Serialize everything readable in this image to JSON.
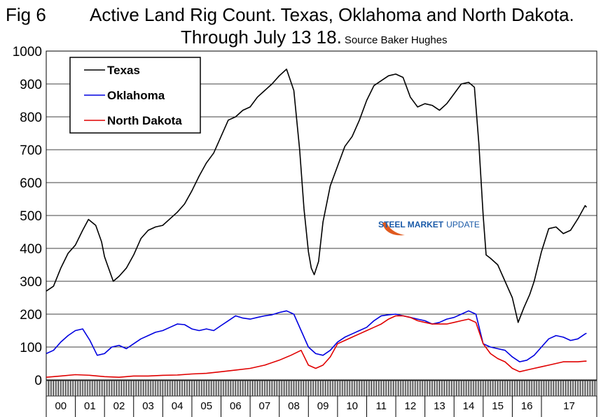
{
  "header": {
    "fig_label": "Fig 6",
    "title_line1": "Active Land Rig Count. Texas, Oklahoma and North Dakota.",
    "title_line2": "Through July 13 18.",
    "source": "Source Baker Hughes"
  },
  "watermark": {
    "text_bold": "STEEL MARKET",
    "text_light": "UPDATE",
    "brand_color": "#1a5aa8",
    "accent_color": "#e05a1e"
  },
  "chart_data": {
    "type": "line",
    "title": "Active Land Rig Count. Texas, Oklahoma and North Dakota. Through July 13 18.",
    "xlabel": "",
    "ylabel": "",
    "ylim": [
      0,
      1000
    ],
    "xlim": [
      2000.0,
      2018.9
    ],
    "y_ticks": [
      "0",
      "100",
      "200",
      "300",
      "400",
      "500",
      "600",
      "700",
      "800",
      "900",
      "1000"
    ],
    "x_categories": [
      "00",
      "01",
      "02",
      "03",
      "04",
      "05",
      "06",
      "07",
      "08",
      "09",
      "10",
      "11",
      "12",
      "13",
      "14",
      "15",
      "16",
      "17"
    ],
    "x_category_starts": [
      2000,
      2001,
      2002,
      2003,
      2004,
      2005,
      2006,
      2007,
      2008,
      2009,
      2010,
      2011,
      2012,
      2013,
      2014,
      2015,
      2016,
      2017
    ],
    "legend": {
      "position": "top-left"
    },
    "series": [
      {
        "name": "Texas",
        "color": "#000000",
        "x": [
          2000.0,
          2000.25,
          2000.5,
          2000.75,
          2001.0,
          2001.25,
          2001.45,
          2001.7,
          2001.9,
          2002.0,
          2002.1,
          2002.3,
          2002.5,
          2002.75,
          2003.0,
          2003.25,
          2003.5,
          2003.75,
          2004.0,
          2004.25,
          2004.5,
          2004.75,
          2005.0,
          2005.25,
          2005.5,
          2005.75,
          2006.0,
          2006.25,
          2006.5,
          2006.75,
          2007.0,
          2007.25,
          2007.5,
          2007.75,
          2008.0,
          2008.25,
          2008.5,
          2008.7,
          2008.85,
          2009.0,
          2009.1,
          2009.2,
          2009.35,
          2009.5,
          2009.75,
          2010.0,
          2010.25,
          2010.5,
          2010.75,
          2011.0,
          2011.25,
          2011.5,
          2011.75,
          2012.0,
          2012.25,
          2012.5,
          2012.75,
          2013.0,
          2013.25,
          2013.5,
          2013.75,
          2014.0,
          2014.25,
          2014.5,
          2014.7,
          2014.85,
          2015.0,
          2015.1,
          2015.25,
          2015.5,
          2015.75,
          2016.0,
          2016.2,
          2016.4,
          2016.6,
          2016.75,
          2017.0,
          2017.25,
          2017.5,
          2017.75,
          2018.0,
          2018.25,
          2018.5,
          2018.55
        ],
        "values": [
          270,
          285,
          340,
          385,
          410,
          455,
          488,
          470,
          420,
          375,
          350,
          300,
          315,
          340,
          380,
          430,
          455,
          465,
          470,
          490,
          510,
          535,
          575,
          620,
          660,
          690,
          740,
          790,
          800,
          820,
          830,
          860,
          880,
          900,
          925,
          945,
          880,
          700,
          520,
          390,
          340,
          320,
          360,
          480,
          590,
          650,
          710,
          740,
          790,
          850,
          895,
          910,
          925,
          930,
          920,
          860,
          830,
          840,
          835,
          820,
          840,
          870,
          900,
          905,
          890,
          720,
          500,
          380,
          370,
          350,
          300,
          250,
          175,
          220,
          260,
          300,
          390,
          460,
          465,
          445,
          455,
          490,
          530,
          525
        ]
      },
      {
        "name": "Oklahoma",
        "color": "#0000e0",
        "x": [
          2000.0,
          2000.25,
          2000.5,
          2000.75,
          2001.0,
          2001.25,
          2001.5,
          2001.75,
          2002.0,
          2002.25,
          2002.5,
          2002.75,
          2003.0,
          2003.25,
          2003.5,
          2003.75,
          2004.0,
          2004.25,
          2004.5,
          2004.75,
          2005.0,
          2005.25,
          2005.5,
          2005.75,
          2006.0,
          2006.25,
          2006.5,
          2006.75,
          2007.0,
          2007.25,
          2007.5,
          2007.75,
          2008.0,
          2008.25,
          2008.5,
          2008.75,
          2009.0,
          2009.25,
          2009.5,
          2009.75,
          2010.0,
          2010.25,
          2010.5,
          2010.75,
          2011.0,
          2011.25,
          2011.5,
          2011.75,
          2012.0,
          2012.25,
          2012.5,
          2012.75,
          2013.0,
          2013.25,
          2013.5,
          2013.75,
          2014.0,
          2014.25,
          2014.5,
          2014.75,
          2015.0,
          2015.25,
          2015.5,
          2015.75,
          2016.0,
          2016.25,
          2016.5,
          2016.75,
          2017.0,
          2017.25,
          2017.5,
          2017.75,
          2018.0,
          2018.25,
          2018.5,
          2018.55
        ],
        "values": [
          80,
          90,
          115,
          135,
          150,
          155,
          120,
          75,
          80,
          100,
          105,
          95,
          110,
          125,
          135,
          145,
          150,
          160,
          170,
          168,
          155,
          150,
          155,
          150,
          165,
          180,
          195,
          188,
          185,
          190,
          195,
          198,
          205,
          210,
          200,
          150,
          100,
          80,
          75,
          90,
          115,
          130,
          140,
          150,
          160,
          180,
          195,
          198,
          200,
          195,
          190,
          185,
          180,
          170,
          175,
          185,
          190,
          200,
          210,
          200,
          110,
          100,
          95,
          90,
          70,
          55,
          60,
          75,
          100,
          125,
          135,
          130,
          120,
          125,
          140,
          142
        ]
      },
      {
        "name": "North Dakota",
        "color": "#e00000",
        "x": [
          2000.0,
          2000.5,
          2001.0,
          2001.5,
          2002.0,
          2002.5,
          2003.0,
          2003.5,
          2004.0,
          2004.5,
          2005.0,
          2005.5,
          2006.0,
          2006.5,
          2007.0,
          2007.5,
          2008.0,
          2008.4,
          2008.75,
          2009.0,
          2009.25,
          2009.5,
          2009.75,
          2010.0,
          2010.25,
          2010.5,
          2010.75,
          2011.0,
          2011.25,
          2011.5,
          2011.75,
          2012.0,
          2012.25,
          2012.5,
          2012.75,
          2013.0,
          2013.25,
          2013.5,
          2013.75,
          2014.0,
          2014.25,
          2014.5,
          2014.75,
          2015.0,
          2015.25,
          2015.5,
          2015.75,
          2016.0,
          2016.25,
          2016.5,
          2016.75,
          2017.0,
          2017.25,
          2017.5,
          2017.75,
          2018.0,
          2018.25,
          2018.5,
          2018.55
        ],
        "values": [
          8,
          12,
          16,
          14,
          10,
          8,
          12,
          12,
          14,
          15,
          18,
          20,
          25,
          30,
          35,
          45,
          60,
          75,
          90,
          45,
          35,
          45,
          70,
          110,
          120,
          130,
          140,
          150,
          160,
          170,
          185,
          195,
          195,
          190,
          180,
          175,
          170,
          170,
          170,
          175,
          180,
          185,
          175,
          110,
          80,
          65,
          55,
          35,
          25,
          30,
          35,
          40,
          45,
          50,
          55,
          55,
          55,
          57,
          57
        ]
      }
    ]
  }
}
